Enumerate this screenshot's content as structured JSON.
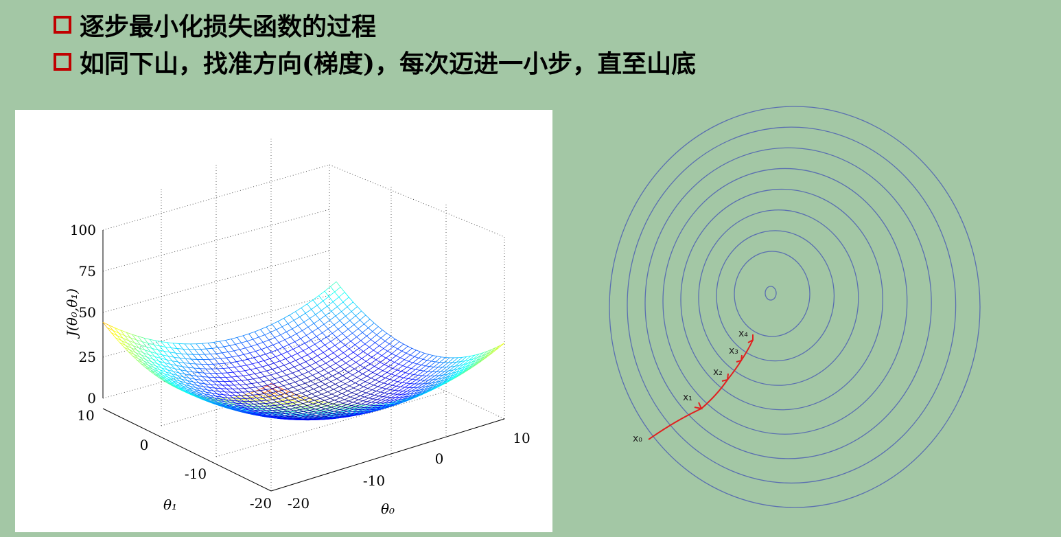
{
  "bullets": [
    "逐步最小化损失函数的过程",
    "如同下山，找准方向(梯度)，每次迈进一小步，直至山底"
  ],
  "surface_plot": {
    "z_ticks": [
      "100",
      "75",
      "50",
      "25",
      "0"
    ],
    "theta1_ticks": [
      "10",
      "0",
      "-10",
      "-20"
    ],
    "theta0_ticks": [
      "-20",
      "-10",
      "0",
      "10"
    ],
    "z_label": "J(θ₀,θ₁)",
    "theta1_label": "θ₁",
    "theta0_label": "θ₀"
  },
  "contour_plot": {
    "points": [
      "x₀",
      "x₁",
      "x₂",
      "x₃",
      "x₄"
    ]
  }
}
